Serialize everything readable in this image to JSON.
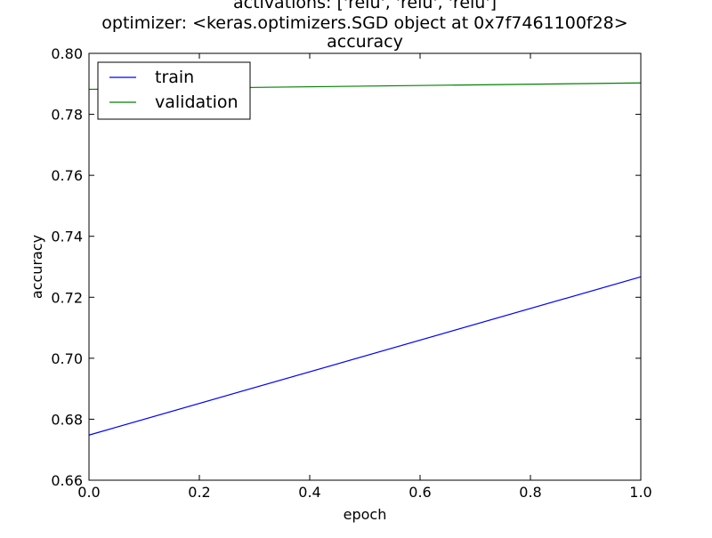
{
  "chart_data": {
    "type": "line",
    "title": [
      "activations: ['relu', 'relu', 'relu']",
      "optimizer: <keras.optimizers.SGD object at 0x7f7461100f28>",
      "accuracy"
    ],
    "xlabel": "epoch",
    "ylabel": "accuracy",
    "xlim": [
      0.0,
      1.0
    ],
    "ylim": [
      0.66,
      0.8
    ],
    "x_ticks": [
      0.0,
      0.2,
      0.4,
      0.6,
      0.8,
      1.0
    ],
    "x_tick_labels": [
      "0.0",
      "0.2",
      "0.4",
      "0.6",
      "0.8",
      "1.0"
    ],
    "y_ticks": [
      0.66,
      0.68,
      0.7,
      0.72,
      0.74,
      0.76,
      0.78,
      0.8
    ],
    "y_tick_labels": [
      "0.66",
      "0.68",
      "0.70",
      "0.72",
      "0.74",
      "0.76",
      "0.78",
      "0.80"
    ],
    "grid": false,
    "legend_position": "top-left",
    "series": [
      {
        "name": "train",
        "color": "#0000ff",
        "x": [
          0,
          1
        ],
        "values": [
          0.6748,
          0.7267
        ]
      },
      {
        "name": "validation",
        "color": "#008000",
        "x": [
          0,
          1
        ],
        "values": [
          0.7882,
          0.7903
        ]
      }
    ]
  }
}
